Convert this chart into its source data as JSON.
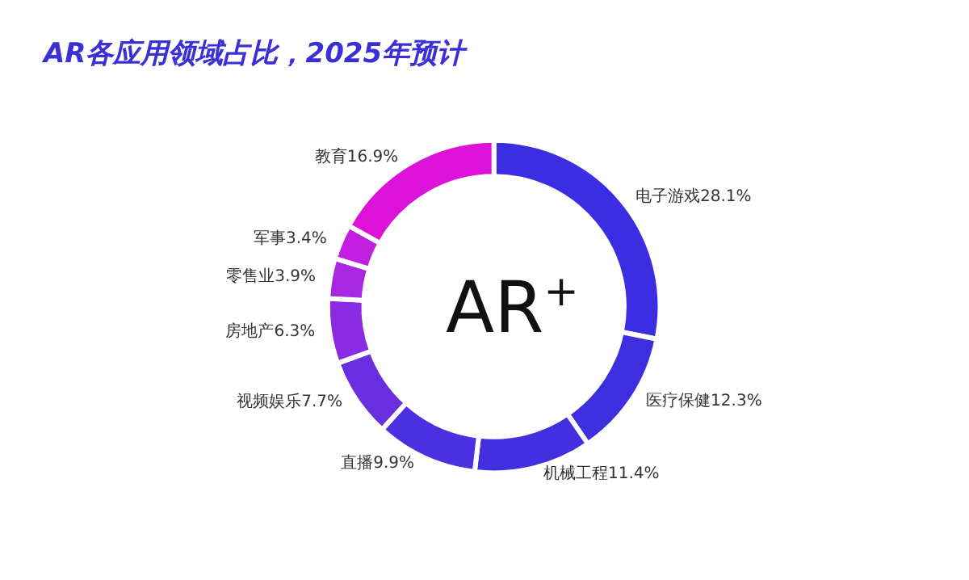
{
  "chart_data": {
    "type": "donut",
    "title": "AR各应用领域占比，2025年预计",
    "categories": [
      "电子游戏",
      "医疗保健",
      "机械工程",
      "直播",
      "视频娱乐",
      "房地产",
      "零售业",
      "军事",
      "教育"
    ],
    "values": [
      28.1,
      12.3,
      11.4,
      9.9,
      7.7,
      6.3,
      3.9,
      3.4,
      16.9
    ],
    "colors": [
      "#3a2de2",
      "#3d2fe0",
      "#4230e0",
      "#4a30e0",
      "#682ee0",
      "#8a2be2",
      "#a828e2",
      "#c21ee0",
      "#dc12d8"
    ],
    "value_labels": [
      "28.1%",
      "12.3%",
      "11.4%",
      "9.9%",
      "7.7%",
      "6.3%",
      "3.9%",
      "3.4%",
      "16.9%"
    ],
    "annotations": [
      "AR$^{+}$"
    ],
    "legend": false
  }
}
